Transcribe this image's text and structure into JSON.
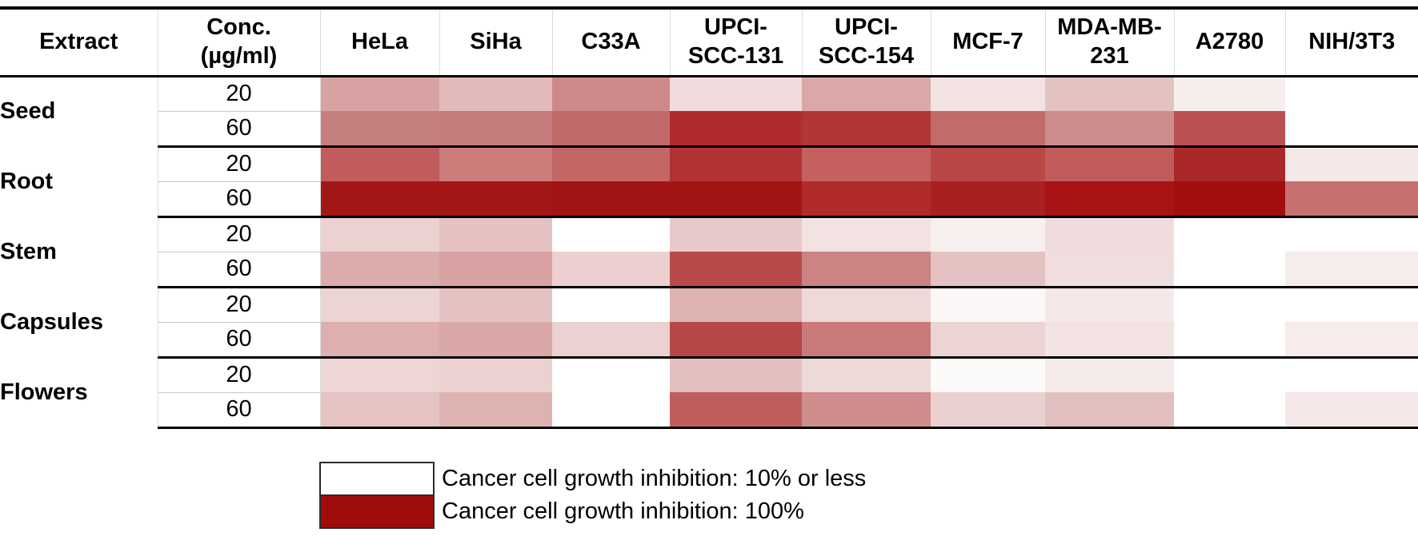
{
  "table": {
    "headers": [
      "Extract",
      "Conc.\n(µg/ml)",
      "HeLa",
      "SiHa",
      "C33A",
      "UPCI-\nSCC-131",
      "UPCI-\nSCC-154",
      "MCF-7",
      "MDA-MB-\n231",
      "A2780",
      "NIH/3T3"
    ]
  },
  "chart_data": {
    "type": "heatmap",
    "title": "",
    "columns": [
      "HeLa",
      "SiHa",
      "C33A",
      "UPCI-SCC-131",
      "UPCI-SCC-154",
      "MCF-7",
      "MDA-MB-231",
      "A2780",
      "NIH/3T3"
    ],
    "row_label_headers": [
      "Extract",
      "Conc. (µg/ml)"
    ],
    "value_encoding": "cell color encodes cancer cell growth inhibition percent, white = 10% or less, dark red = 100%",
    "color_scale": {
      "low_color": "#ffffff",
      "low_value_pct": 10,
      "high_color": "#a00c0c",
      "high_value_pct": 100
    },
    "row_groups": [
      {
        "extract": "Seed",
        "concentrations": [
          {
            "conc": "20",
            "colors": [
              "#d8a2a2",
              "#e2baba",
              "#cd8989",
              "#f0dcdc",
              "#dba8a8",
              "#f2e2e2",
              "#e3c2c2",
              "#f6eded",
              "#ffffff"
            ],
            "values_est_pct": [
              44,
              36,
              54,
              23,
              42,
              21,
              33,
              17,
              10
            ]
          },
          {
            "conc": "60",
            "colors": [
              "#c67f7f",
              "#c67c7c",
              "#c06969",
              "#b02b2b",
              "#b23636",
              "#c16b6b",
              "#cc8d8d",
              "#bb5050",
              "#ffffff"
            ],
            "values_est_pct": [
              57,
              58,
              66,
              88,
              84,
              65,
              52,
              75,
              10
            ]
          }
        ]
      },
      {
        "extract": "Root",
        "concentrations": [
          {
            "conc": "20",
            "colors": [
              "#c25c5c",
              "#cd7c7c",
              "#c46666",
              "#b13232",
              "#c46060",
              "#ba4646",
              "#c05c5c",
              "#aa2828",
              "#f4e8e8"
            ],
            "values_est_pct": [
              70,
              58,
              67,
              86,
              69,
              79,
              70,
              90,
              18
            ]
          },
          {
            "conc": "60",
            "colors": [
              "#a41717",
              "#a41717",
              "#a31414",
              "#a31414",
              "#b02a2a",
              "#aa2020",
              "#a81313",
              "#a30d0d",
              "#c77070"
            ],
            "values_est_pct": [
              96,
              96,
              97,
              97,
              89,
              93,
              97,
              100,
              63
            ]
          }
        ]
      },
      {
        "extract": "Stem",
        "concentrations": [
          {
            "conc": "20",
            "colors": [
              "#ecd1d1",
              "#e5c1c1",
              "#ffffff",
              "#e8c9c9",
              "#f2e2e2",
              "#f8efef",
              "#f0dcdc",
              "#ffffff",
              "#ffffff"
            ],
            "values_est_pct": [
              27,
              33,
              10,
              30,
              21,
              16,
              23,
              10,
              10
            ]
          },
          {
            "conc": "60",
            "colors": [
              "#dcacac",
              "#d8a2a2",
              "#ecd0d0",
              "#b84a4a",
              "#cc8383",
              "#e4c2c2",
              "#f0dede",
              "#ffffff",
              "#f7ecec"
            ],
            "values_est_pct": [
              41,
              44,
              27,
              77,
              56,
              33,
              22,
              10,
              17
            ]
          }
        ]
      },
      {
        "extract": "Capsules",
        "concentrations": [
          {
            "conc": "20",
            "colors": [
              "#edd4d4",
              "#e5c2c2",
              "#ffffff",
              "#dfb2b2",
              "#eed8d8",
              "#fbf7f7",
              "#f5e8e8",
              "#ffffff",
              "#ffffff"
            ],
            "values_est_pct": [
              26,
              33,
              10,
              39,
              24,
              13,
              19,
              10,
              10
            ]
          },
          {
            "conc": "60",
            "colors": [
              "#ddafaf",
              "#daa7a7",
              "#ecd1d1",
              "#b74646",
              "#c97b7b",
              "#ecd4d4",
              "#f2e2e2",
              "#ffffff",
              "#f7ebeb"
            ],
            "values_est_pct": [
              40,
              43,
              27,
              79,
              59,
              26,
              21,
              10,
              17
            ]
          }
        ]
      },
      {
        "extract": "Flowers",
        "concentrations": [
          {
            "conc": "20",
            "colors": [
              "#eed6d6",
              "#ecd1d1",
              "#ffffff",
              "#e3c0c0",
              "#eed9d9",
              "#fcf9f9",
              "#f5eaea",
              "#ffffff",
              "#ffffff"
            ],
            "values_est_pct": [
              25,
              27,
              10,
              33,
              24,
              12,
              18,
              10,
              10
            ]
          },
          {
            "conc": "60",
            "colors": [
              "#e5c3c3",
              "#dfb2b2",
              "#ffffff",
              "#c05e5e",
              "#cf8c8c",
              "#ead0d0",
              "#e2bfbf",
              "#ffffff",
              "#f6e8e8"
            ],
            "values_est_pct": [
              32,
              39,
              10,
              70,
              53,
              27,
              34,
              10,
              19
            ]
          }
        ]
      }
    ]
  },
  "legend": {
    "items": [
      {
        "color": "#ffffff",
        "label": "Cancer cell growth inhibition: 10% or less"
      },
      {
        "color": "#a00c0c",
        "label": "Cancer cell growth inhibition: 100%"
      }
    ]
  }
}
